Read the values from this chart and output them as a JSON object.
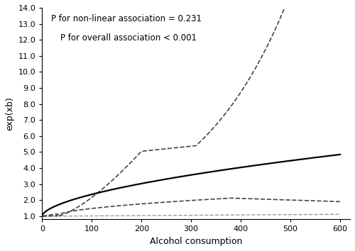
{
  "xlabel": "Alcohol consumption",
  "ylabel": "exp(xb)",
  "annotation_line1": "P for non-linear association = 0.231",
  "annotation_line2": "P for overall association < 0.001",
  "xlim": [
    0,
    620
  ],
  "ylim": [
    0.8,
    14.0
  ],
  "yticks": [
    1.0,
    2.0,
    3.0,
    4.0,
    5.0,
    6.0,
    7.0,
    8.0,
    9.0,
    10.0,
    11.0,
    12.0,
    13.0,
    14.0
  ],
  "xticks": [
    0,
    100,
    200,
    300,
    400,
    500,
    600
  ],
  "main_color": "#000000",
  "ci_dark_color": "#444444",
  "ci_light_color": "#999999",
  "background_color": "#ffffff",
  "figsize": [
    5.0,
    3.54
  ],
  "dpi": 100,
  "annotation_fontsize": 8.5,
  "axis_fontsize": 9,
  "tick_fontsize": 8
}
